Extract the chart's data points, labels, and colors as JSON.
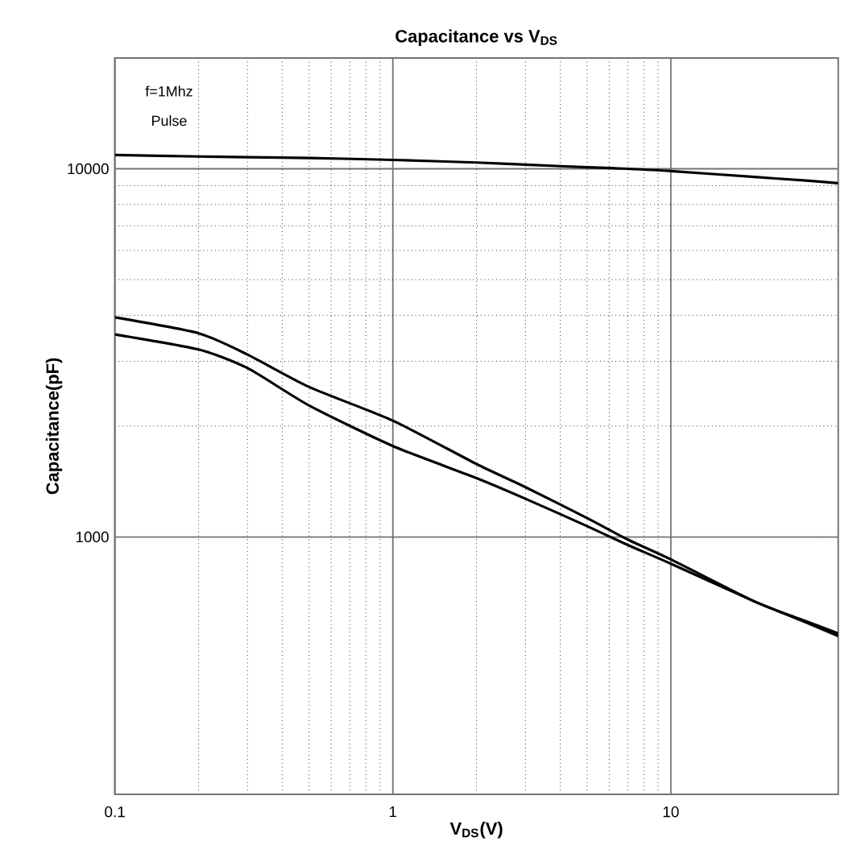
{
  "chart_data": {
    "type": "line",
    "title": "**Capacitance vs V$_{DS}$**",
    "xlabel": "**V$_{DS}$(V)**",
    "ylabel": "**Capacitance(pF)**",
    "annotations": [
      "f=1Mhz",
      "Pulse"
    ],
    "x": [
      0.1,
      0.2,
      0.3,
      0.5,
      1,
      2,
      3,
      5,
      7,
      10,
      20,
      30,
      40
    ],
    "series": [
      {
        "color": "#000000",
        "values": [
          10900,
          10800,
          10750,
          10700,
          10570,
          10400,
          10260,
          10100,
          10000,
          9860,
          9500,
          9300,
          9140
        ]
      },
      {
        "color": "#000000",
        "values": [
          3950,
          3575,
          3130,
          2555,
          2070,
          1578,
          1365,
          1125,
          984,
          869,
          668,
          594,
          547
        ]
      },
      {
        "color": "#000000",
        "values": [
          3550,
          3230,
          2875,
          2275,
          1766,
          1445,
          1270,
          1070,
          951,
          846,
          668,
          590,
          538
        ]
      }
    ],
    "log": "xy",
    "xlim": [
      0.1,
      40
    ],
    "ylim": [
      200,
      20000
    ],
    "xticks": [
      0.1,
      1,
      10
    ],
    "yticks": [
      1000,
      10000
    ],
    "grid": true,
    "marker": "none",
    "line_style": "solid"
  }
}
